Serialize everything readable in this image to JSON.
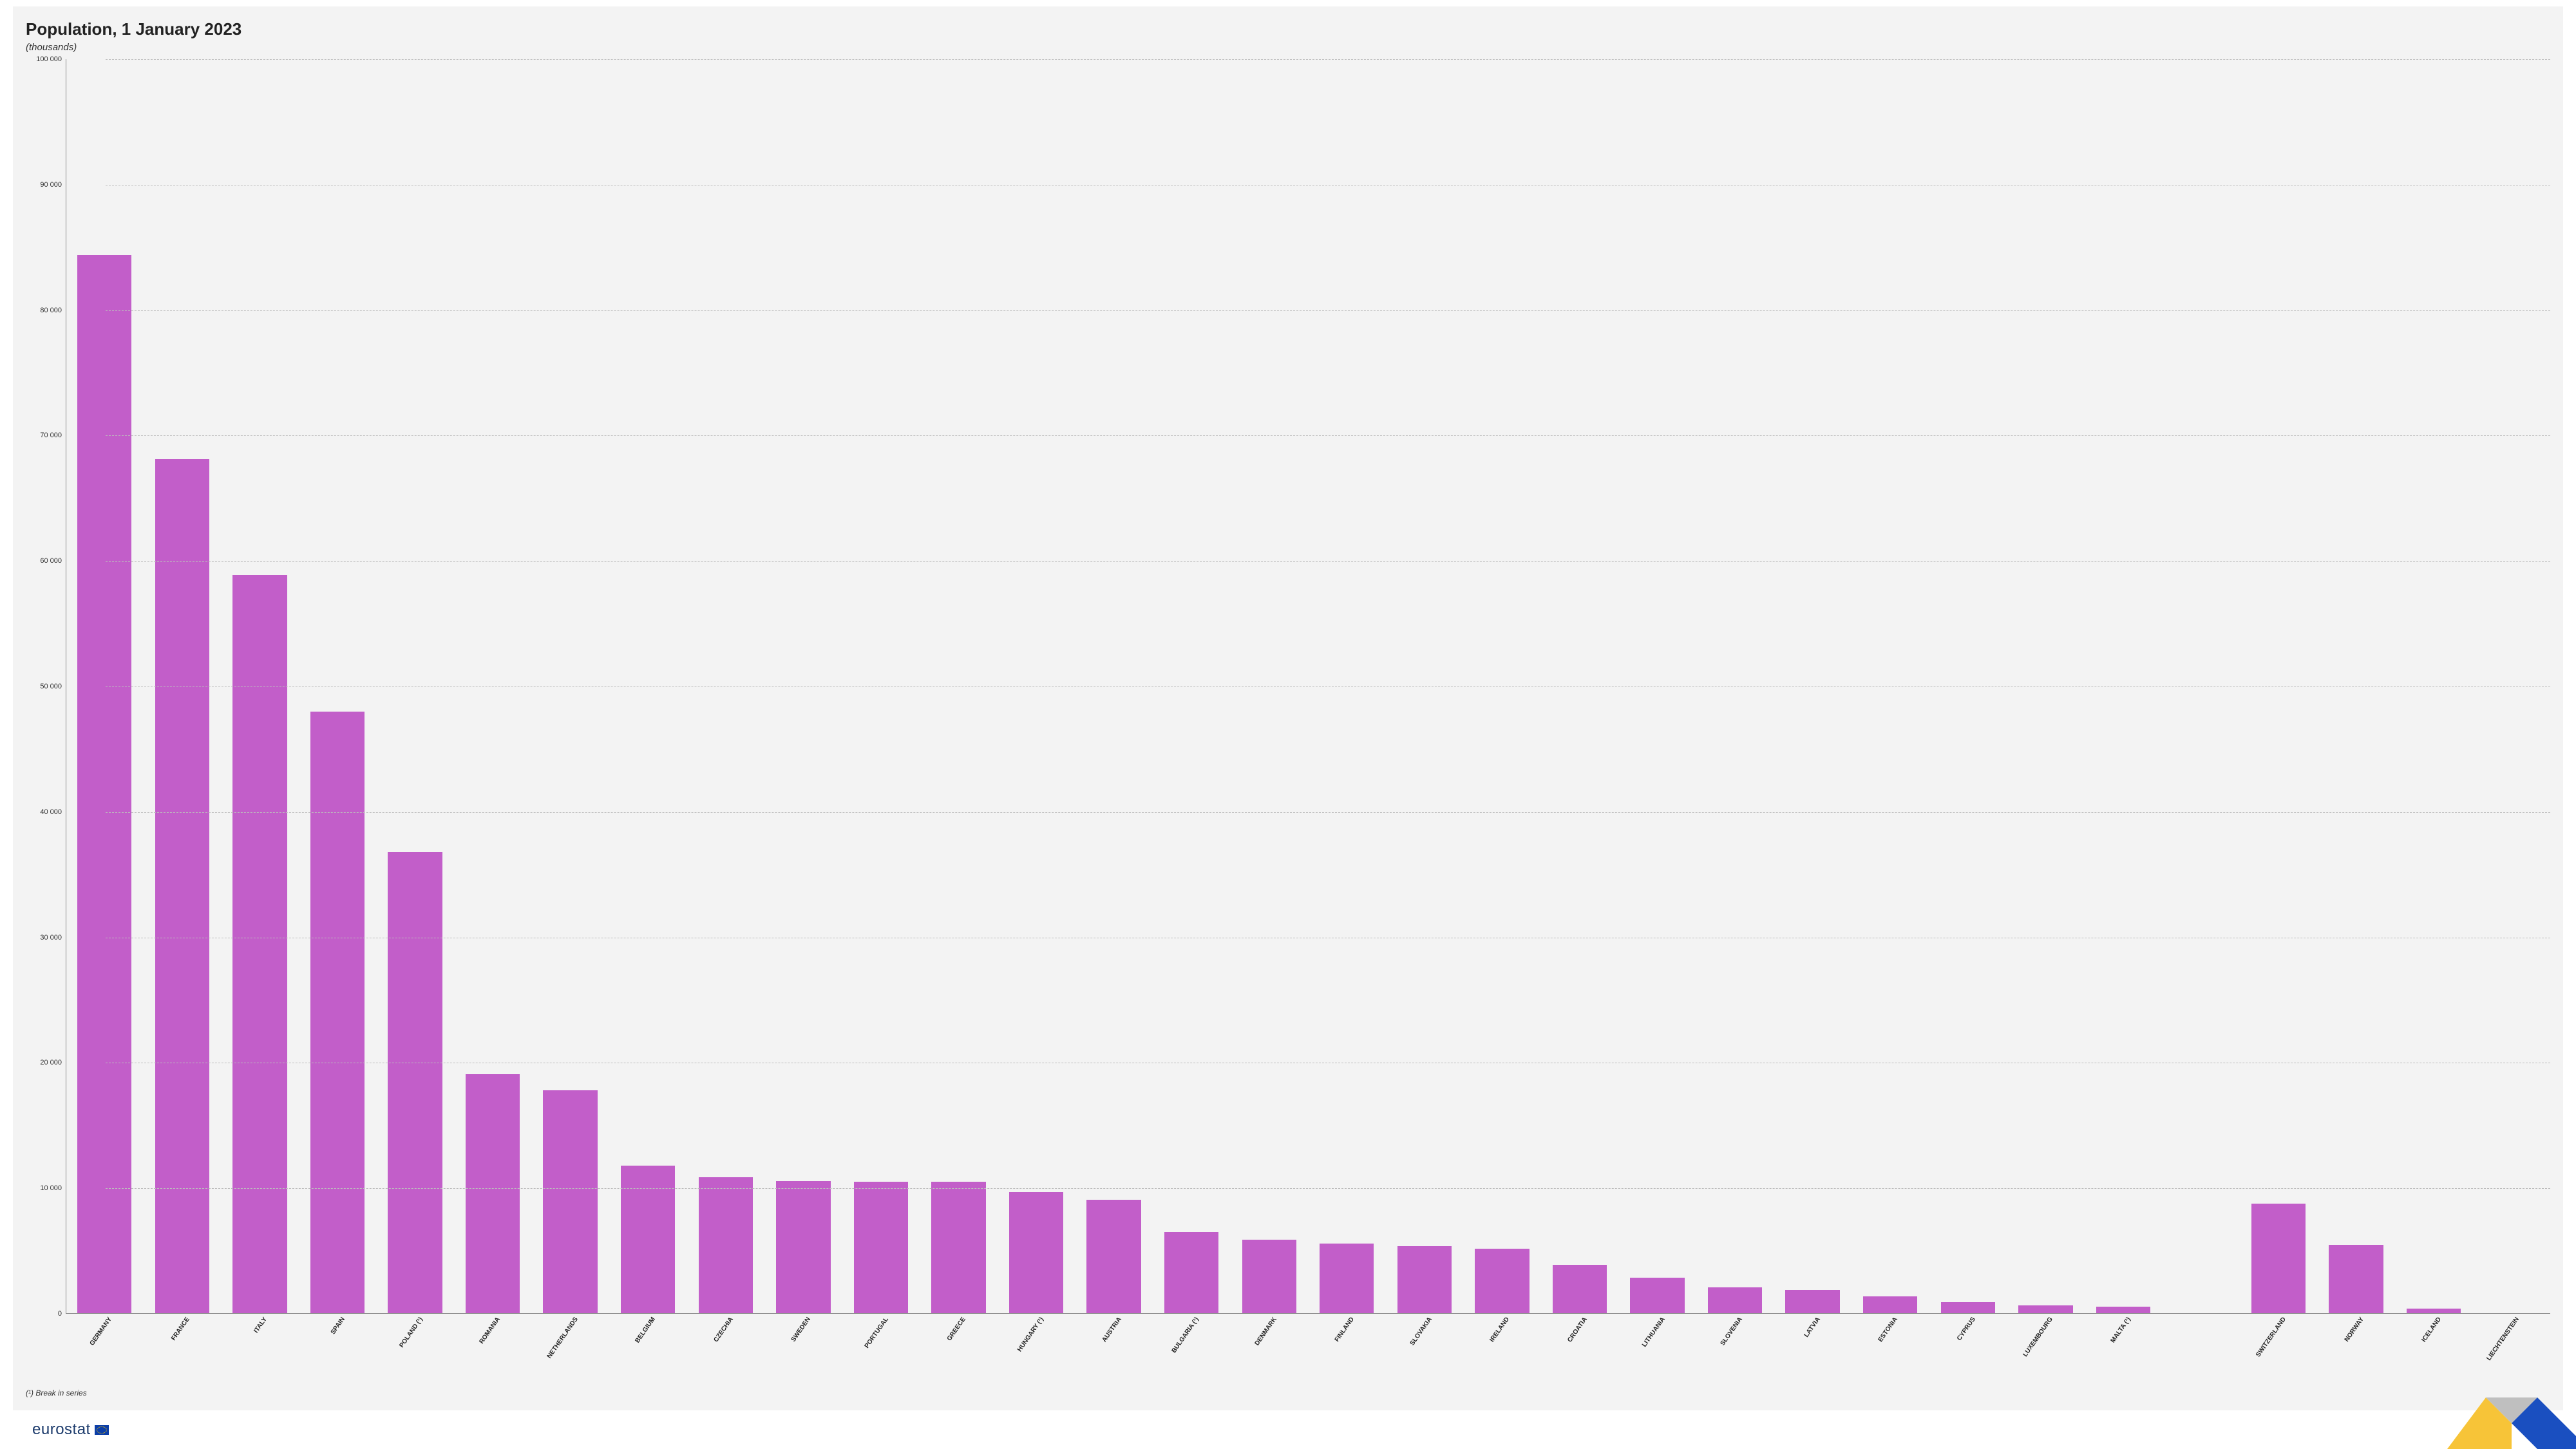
{
  "chart": {
    "type": "bar",
    "title": "Population, 1 January 2023",
    "title_fontsize": 26,
    "title_weight": 700,
    "subtitle": "(thousands)",
    "subtitle_fontsize": 15,
    "subtitle_style": "italic",
    "footnote": "(¹)  Break in series",
    "background_color": "#f3f3f3",
    "page_background": "#ffffff",
    "grid_color": "#bcbcbc",
    "grid_style": "dashed",
    "axis_line_color": "#888888",
    "text_color": "#222222",
    "bar_color": "#c25ec9",
    "bar_width": 0.7,
    "slot_gap_index": 27,
    "slot_gap_extra": 1.0,
    "y": {
      "min": 0,
      "max": 100000,
      "tick_step": 10000,
      "tick_format": "space-thousands"
    },
    "x_label_fontsize": 10,
    "x_label_rotation_deg": -55,
    "y_label_fontsize": 11,
    "categories": [
      "GERMANY",
      "FRANCE",
      "ITALY",
      "SPAIN",
      "POLAND (¹)",
      "ROMANIA",
      "NETHERLANDS",
      "BELGIUM",
      "CZECHIA",
      "SWEDEN",
      "PORTUGAL",
      "GREECE",
      "HUNGARY (¹)",
      "AUSTRIA",
      "BULGARIA (¹)",
      "DENMARK",
      "FINLAND",
      "SLOVAKIA",
      "IRELAND",
      "CROATIA",
      "LITHUANIA",
      "SLOVENIA",
      "LATVIA",
      "ESTONIA",
      "CYPRUS",
      "LUXEMBOURG",
      "MALTA (¹)",
      "SWITZERLAND",
      "NORWAY",
      "ICELAND",
      "LIECHTENSTEIN"
    ],
    "values": [
      84400,
      68100,
      58900,
      48000,
      36800,
      19100,
      17800,
      11800,
      10900,
      10600,
      10500,
      10500,
      9700,
      9100,
      6500,
      5900,
      5600,
      5400,
      5200,
      3900,
      2900,
      2100,
      1900,
      1400,
      900,
      660,
      540,
      8800,
      5500,
      390,
      40
    ]
  },
  "logo": {
    "text": "eurostat",
    "text_color": "#1b3a6b",
    "flag_bg": "#0b3ea8",
    "flag_ring": "#f7c700"
  },
  "corner_graphic": {
    "colors": {
      "yellow": "#f7c438",
      "gray": "#bfbfbf",
      "blue": "#1a4fc0"
    }
  }
}
